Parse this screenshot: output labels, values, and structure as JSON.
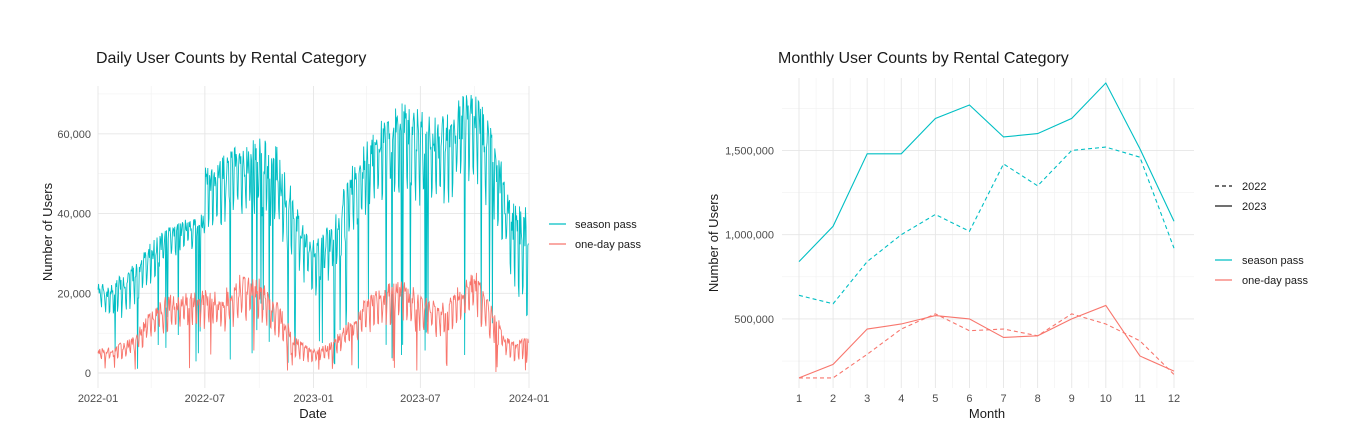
{
  "colors": {
    "season": "#00BFC4",
    "oneday": "#F8766D"
  },
  "chart_data": [
    {
      "type": "line",
      "title": "Daily User Counts by Rental Category",
      "xlabel": "Date",
      "ylabel": "Number of Users",
      "xlim": [
        "2022-01-01",
        "2024-01-01"
      ],
      "ylim": [
        0,
        72000
      ],
      "x_ticks": [
        "2022-01",
        "2022-07",
        "2023-01",
        "2023-07",
        "2024-01"
      ],
      "y_ticks": [
        0,
        20000,
        40000,
        60000
      ],
      "y_tick_labels": [
        "0",
        "20,000",
        "40,000",
        "60,000"
      ],
      "grid": true,
      "legend_position": "right",
      "series_note_daily": "daily values shown as envelopes; the weekly highs and the sharp low days are approximated",
      "series": [
        {
          "name": "season pass",
          "color": "#00BFC4",
          "envelope": [
            {
              "date": "2022-01-01",
              "hi": 24000,
              "lo": 15000
            },
            {
              "date": "2022-01-20",
              "hi": 22000,
              "lo": 14000
            },
            {
              "date": "2022-02-10",
              "hi": 25000,
              "lo": 13000
            },
            {
              "date": "2022-03-01",
              "hi": 27000,
              "lo": 16000
            },
            {
              "date": "2022-04-01",
              "hi": 33000,
              "lo": 22000
            },
            {
              "date": "2022-05-01",
              "hi": 37000,
              "lo": 28000
            },
            {
              "date": "2022-06-01",
              "hi": 39000,
              "lo": 30000
            },
            {
              "date": "2022-06-30",
              "hi": 40000,
              "lo": 32000
            },
            {
              "date": "2022-07-01",
              "hi": 54000,
              "lo": 34000
            },
            {
              "date": "2022-08-01",
              "hi": 55000,
              "lo": 36000
            },
            {
              "date": "2022-09-01",
              "hi": 58000,
              "lo": 38000
            },
            {
              "date": "2022-10-01",
              "hi": 59000,
              "lo": 38000
            },
            {
              "date": "2022-11-01",
              "hi": 57000,
              "lo": 33000
            },
            {
              "date": "2022-12-01",
              "hi": 44000,
              "lo": 25000
            },
            {
              "date": "2023-01-01",
              "hi": 34000,
              "lo": 18000
            },
            {
              "date": "2023-02-01",
              "hi": 38000,
              "lo": 22000
            },
            {
              "date": "2023-03-01",
              "hi": 51000,
              "lo": 32000
            },
            {
              "date": "2023-04-01",
              "hi": 60000,
              "lo": 38000
            },
            {
              "date": "2023-05-01",
              "hi": 64000,
              "lo": 42000
            },
            {
              "date": "2023-06-01",
              "hi": 68000,
              "lo": 44000
            },
            {
              "date": "2023-07-01",
              "hi": 66000,
              "lo": 40000
            },
            {
              "date": "2023-08-01",
              "hi": 64000,
              "lo": 38000
            },
            {
              "date": "2023-09-01",
              "hi": 69000,
              "lo": 44000
            },
            {
              "date": "2023-10-01",
              "hi": 71000,
              "lo": 46000
            },
            {
              "date": "2023-11-01",
              "hi": 62000,
              "lo": 36000
            },
            {
              "date": "2023-12-01",
              "hi": 44000,
              "lo": 22000
            },
            {
              "date": "2023-12-31",
              "hi": 42000,
              "lo": 12000
            }
          ]
        },
        {
          "name": "one-day pass",
          "color": "#F8766D",
          "envelope": [
            {
              "date": "2022-01-01",
              "hi": 6000,
              "lo": 3000
            },
            {
              "date": "2022-02-01",
              "hi": 7000,
              "lo": 3000
            },
            {
              "date": "2022-03-01",
              "hi": 9000,
              "lo": 4000
            },
            {
              "date": "2022-04-01",
              "hi": 16000,
              "lo": 8000
            },
            {
              "date": "2022-05-01",
              "hi": 20000,
              "lo": 10000
            },
            {
              "date": "2022-06-01",
              "hi": 20000,
              "lo": 11000
            },
            {
              "date": "2022-07-01",
              "hi": 21000,
              "lo": 10000
            },
            {
              "date": "2022-08-01",
              "hi": 21000,
              "lo": 9000
            },
            {
              "date": "2022-09-01",
              "hi": 25000,
              "lo": 12000
            },
            {
              "date": "2022-10-01",
              "hi": 24000,
              "lo": 12000
            },
            {
              "date": "2022-11-01",
              "hi": 18000,
              "lo": 8000
            },
            {
              "date": "2022-12-01",
              "hi": 9000,
              "lo": 3000
            },
            {
              "date": "2023-01-01",
              "hi": 6000,
              "lo": 2000
            },
            {
              "date": "2023-02-01",
              "hi": 8000,
              "lo": 3000
            },
            {
              "date": "2023-03-01",
              "hi": 13000,
              "lo": 6000
            },
            {
              "date": "2023-04-01",
              "hi": 19000,
              "lo": 9000
            },
            {
              "date": "2023-05-01",
              "hi": 22000,
              "lo": 11000
            },
            {
              "date": "2023-06-01",
              "hi": 24000,
              "lo": 12000
            },
            {
              "date": "2023-07-01",
              "hi": 20000,
              "lo": 9000
            },
            {
              "date": "2023-08-01",
              "hi": 18000,
              "lo": 8000
            },
            {
              "date": "2023-09-01",
              "hi": 22000,
              "lo": 11000
            },
            {
              "date": "2023-10-01",
              "hi": 27000,
              "lo": 13000
            },
            {
              "date": "2023-11-01",
              "hi": 16000,
              "lo": 7000
            },
            {
              "date": "2023-12-01",
              "hi": 8000,
              "lo": 3000
            },
            {
              "date": "2023-12-31",
              "hi": 9000,
              "lo": 2000
            }
          ]
        }
      ]
    },
    {
      "type": "line",
      "title": "Monthly User Counts by Rental Category",
      "xlabel": "Month",
      "ylabel": "Number of Users",
      "x": [
        1,
        2,
        3,
        4,
        5,
        6,
        7,
        8,
        9,
        10,
        11,
        12
      ],
      "x_ticks": [
        "1",
        "2",
        "3",
        "4",
        "5",
        "6",
        "7",
        "8",
        "9",
        "10",
        "11",
        "12"
      ],
      "ylim": [
        90000,
        1930000
      ],
      "y_ticks": [
        500000,
        1000000,
        1500000
      ],
      "y_tick_labels": [
        "500,000",
        "1,000,000",
        "1,500,000"
      ],
      "grid": true,
      "legend_position": "right",
      "legend_linetype": [
        {
          "label": "2022",
          "dash": "dashed"
        },
        {
          "label": "2023",
          "dash": "solid"
        }
      ],
      "legend_color": [
        {
          "label": "season pass",
          "color": "#00BFC4"
        },
        {
          "label": "one-day pass",
          "color": "#F8766D"
        }
      ],
      "series": [
        {
          "category": "season pass",
          "year": "2022",
          "dash": "dashed",
          "color": "#00BFC4",
          "values": [
            640000,
            590000,
            840000,
            1000000,
            1120000,
            1020000,
            1420000,
            1290000,
            1500000,
            1520000,
            1460000,
            920000
          ]
        },
        {
          "category": "season pass",
          "year": "2023",
          "dash": "solid",
          "color": "#00BFC4",
          "values": [
            840000,
            1050000,
            1480000,
            1480000,
            1690000,
            1770000,
            1580000,
            1600000,
            1690000,
            1900000,
            1510000,
            1080000
          ]
        },
        {
          "category": "one-day pass",
          "year": "2022",
          "dash": "dashed",
          "color": "#F8766D",
          "values": [
            150000,
            150000,
            290000,
            440000,
            530000,
            430000,
            440000,
            400000,
            530000,
            470000,
            370000,
            170000
          ]
        },
        {
          "category": "one-day pass",
          "year": "2023",
          "dash": "solid",
          "color": "#F8766D",
          "values": [
            150000,
            230000,
            440000,
            470000,
            520000,
            500000,
            390000,
            400000,
            500000,
            580000,
            280000,
            190000
          ]
        }
      ]
    }
  ]
}
